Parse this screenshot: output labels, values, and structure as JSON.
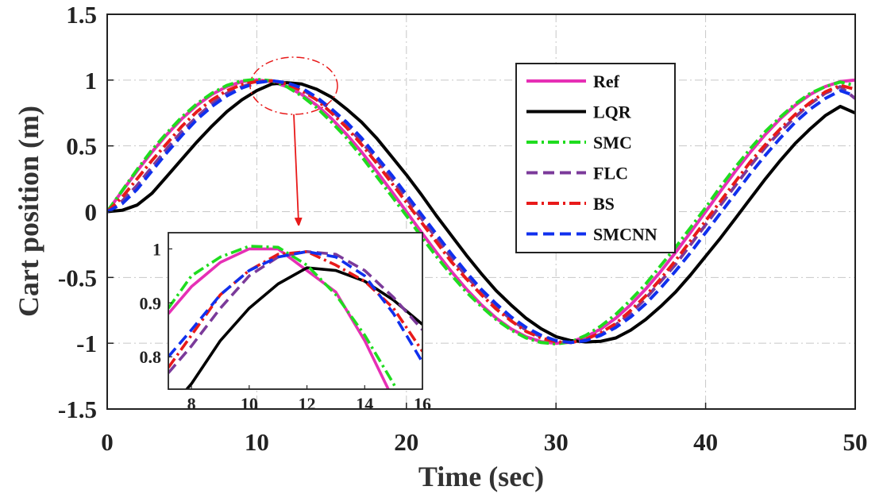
{
  "chart_data": [
    {
      "type": "line",
      "xlabel": "Time (sec)",
      "ylabel": "Cart position (m)",
      "xlim": [
        0,
        50
      ],
      "ylim": [
        -1.5,
        1.5
      ],
      "xticks": [
        "0",
        "10",
        "20",
        "30",
        "40",
        "50"
      ],
      "yticks": [
        "-1.5",
        "-1",
        "-0.5",
        "0",
        "0.5",
        "1",
        "1.5"
      ],
      "grid": true,
      "legend_position": "top-right",
      "x": [
        0,
        1,
        2,
        3,
        4,
        5,
        6,
        7,
        8,
        9,
        10,
        11,
        12,
        13,
        14,
        15,
        16,
        17,
        18,
        19,
        20,
        21,
        22,
        23,
        24,
        25,
        26,
        27,
        28,
        29,
        30,
        31,
        32,
        33,
        34,
        35,
        36,
        37,
        38,
        39,
        40,
        41,
        42,
        43,
        44,
        45,
        46,
        47,
        48,
        49,
        50
      ],
      "series": [
        {
          "name": "Ref",
          "color": "#e62fb5",
          "dash": "solid",
          "values": [
            0,
            0.156,
            0.309,
            0.454,
            0.588,
            0.707,
            0.809,
            0.891,
            0.951,
            0.988,
            1.0,
            0.988,
            0.951,
            0.891,
            0.809,
            0.707,
            0.588,
            0.454,
            0.309,
            0.156,
            0,
            -0.156,
            -0.309,
            -0.454,
            -0.588,
            -0.707,
            -0.809,
            -0.891,
            -0.951,
            -0.988,
            -1.0,
            -0.988,
            -0.951,
            -0.891,
            -0.809,
            -0.707,
            -0.588,
            -0.454,
            -0.309,
            -0.156,
            0,
            0.156,
            0.309,
            0.454,
            0.588,
            0.707,
            0.809,
            0.891,
            0.951,
            0.988,
            1.0
          ]
        },
        {
          "name": "LQR",
          "color": "#000000",
          "dash": "solid",
          "values": [
            0,
            0.01,
            0.05,
            0.14,
            0.27,
            0.4,
            0.53,
            0.65,
            0.76,
            0.85,
            0.92,
            0.97,
            0.98,
            0.97,
            0.93,
            0.87,
            0.78,
            0.68,
            0.56,
            0.42,
            0.28,
            0.13,
            -0.03,
            -0.18,
            -0.33,
            -0.47,
            -0.6,
            -0.71,
            -0.81,
            -0.89,
            -0.95,
            -0.98,
            -0.99,
            -0.985,
            -0.96,
            -0.9,
            -0.82,
            -0.72,
            -0.61,
            -0.48,
            -0.34,
            -0.2,
            -0.05,
            0.1,
            0.25,
            0.39,
            0.52,
            0.63,
            0.73,
            0.8,
            0.75
          ]
        },
        {
          "name": "SMC",
          "color": "#1fdc1f",
          "dash": "dashdot",
          "values": [
            0,
            0.16,
            0.32,
            0.47,
            0.6,
            0.72,
            0.82,
            0.9,
            0.96,
            0.995,
            1.005,
            0.995,
            0.95,
            0.88,
            0.79,
            0.68,
            0.56,
            0.42,
            0.27,
            0.12,
            -0.03,
            -0.19,
            -0.34,
            -0.48,
            -0.61,
            -0.72,
            -0.82,
            -0.9,
            -0.96,
            -0.995,
            -1.005,
            -0.99,
            -0.94,
            -0.87,
            -0.78,
            -0.67,
            -0.55,
            -0.41,
            -0.27,
            -0.12,
            0.03,
            0.19,
            0.34,
            0.48,
            0.61,
            0.72,
            0.82,
            0.9,
            0.95,
            0.985,
            0.96
          ]
        },
        {
          "name": "FLC",
          "color": "#7b3a9a",
          "dash": "dashed",
          "values": [
            0,
            0.08,
            0.2,
            0.34,
            0.48,
            0.61,
            0.72,
            0.82,
            0.9,
            0.95,
            0.985,
            0.995,
            0.975,
            0.93,
            0.86,
            0.77,
            0.66,
            0.53,
            0.4,
            0.25,
            0.1,
            -0.05,
            -0.2,
            -0.35,
            -0.49,
            -0.61,
            -0.72,
            -0.82,
            -0.9,
            -0.95,
            -0.985,
            -0.995,
            -0.975,
            -0.93,
            -0.86,
            -0.77,
            -0.66,
            -0.53,
            -0.4,
            -0.25,
            -0.1,
            0.05,
            0.2,
            0.35,
            0.49,
            0.61,
            0.72,
            0.82,
            0.9,
            0.95,
            0.86
          ]
        },
        {
          "name": "BS",
          "color": "#e81a1a",
          "dash": "dashdot",
          "values": [
            0,
            0.11,
            0.25,
            0.39,
            0.52,
            0.65,
            0.76,
            0.85,
            0.92,
            0.965,
            0.99,
            0.995,
            0.97,
            0.92,
            0.85,
            0.75,
            0.64,
            0.51,
            0.37,
            0.22,
            0.07,
            -0.08,
            -0.23,
            -0.38,
            -0.51,
            -0.63,
            -0.74,
            -0.83,
            -0.91,
            -0.96,
            -0.99,
            -0.995,
            -0.97,
            -0.92,
            -0.85,
            -0.75,
            -0.64,
            -0.51,
            -0.37,
            -0.22,
            -0.07,
            0.08,
            0.23,
            0.38,
            0.51,
            0.63,
            0.74,
            0.83,
            0.91,
            0.96,
            0.93
          ]
        },
        {
          "name": "SMCNN",
          "color": "#1030ee",
          "dash": "dashed",
          "values": [
            0,
            0.06,
            0.17,
            0.31,
            0.45,
            0.58,
            0.7,
            0.8,
            0.88,
            0.94,
            0.98,
            0.995,
            0.98,
            0.94,
            0.87,
            0.78,
            0.68,
            0.56,
            0.42,
            0.28,
            0.13,
            -0.02,
            -0.17,
            -0.32,
            -0.46,
            -0.59,
            -0.7,
            -0.8,
            -0.88,
            -0.94,
            -0.98,
            -0.995,
            -0.98,
            -0.94,
            -0.88,
            -0.8,
            -0.7,
            -0.58,
            -0.45,
            -0.31,
            -0.16,
            -0.01,
            0.14,
            0.29,
            0.43,
            0.56,
            0.68,
            0.78,
            0.86,
            0.92,
            0.88
          ]
        }
      ]
    },
    {
      "type": "line",
      "role": "inset-zoom",
      "xlim": [
        7.2,
        16
      ],
      "ylim": [
        0.74,
        1.03
      ],
      "xticks": [
        "8",
        "10",
        "12",
        "14",
        "16"
      ],
      "yticks": [
        "0.8",
        "0.9",
        "1"
      ],
      "grid": false,
      "x": [
        7.2,
        8,
        9,
        10,
        11,
        12,
        13,
        14,
        15,
        16
      ],
      "series": [
        {
          "name": "Ref",
          "color": "#e62fb5",
          "dash": "solid",
          "values": [
            0.88,
            0.93,
            0.975,
            1.0,
            1.0,
            0.96,
            0.92,
            0.83,
            0.72,
            0.59
          ]
        },
        {
          "name": "LQR",
          "color": "#000000",
          "dash": "solid",
          "values": [
            0.7,
            0.75,
            0.83,
            0.89,
            0.935,
            0.965,
            0.96,
            0.94,
            0.905,
            0.86
          ]
        },
        {
          "name": "SMC",
          "color": "#1fdc1f",
          "dash": "dashdot",
          "values": [
            0.89,
            0.95,
            0.985,
            1.005,
            1.003,
            0.97,
            0.915,
            0.84,
            0.75,
            0.64
          ]
        },
        {
          "name": "FLC",
          "color": "#7b3a9a",
          "dash": "dashed",
          "values": [
            0.77,
            0.82,
            0.89,
            0.95,
            0.985,
            0.995,
            0.99,
            0.96,
            0.91,
            0.85
          ]
        },
        {
          "name": "BS",
          "color": "#e81a1a",
          "dash": "dashdot",
          "values": [
            0.78,
            0.84,
            0.915,
            0.96,
            0.99,
            0.995,
            0.97,
            0.94,
            0.89,
            0.81
          ]
        },
        {
          "name": "SMCNN",
          "color": "#1030ee",
          "dash": "dashed",
          "values": [
            0.8,
            0.85,
            0.915,
            0.96,
            0.985,
            0.995,
            0.985,
            0.95,
            0.88,
            0.79
          ]
        }
      ]
    }
  ]
}
